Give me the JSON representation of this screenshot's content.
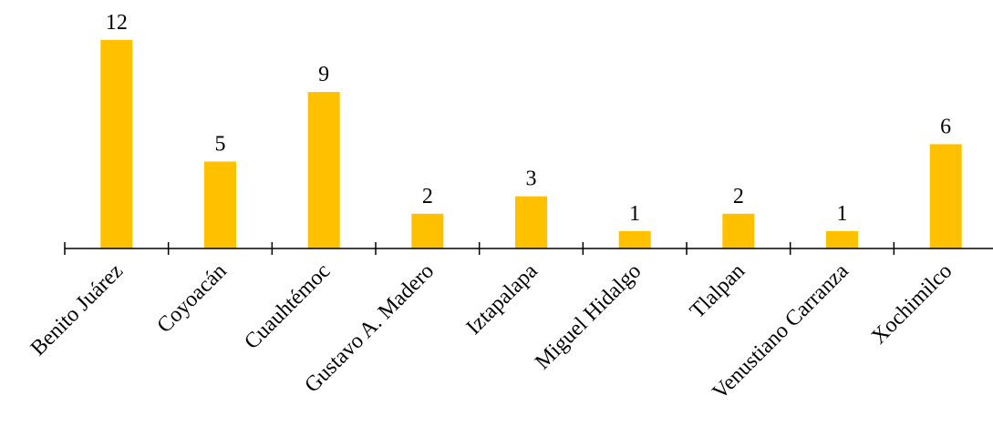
{
  "chart_data": {
    "type": "bar",
    "categories": [
      "Benito Juárez",
      "Coyoacán",
      "Cuauhtémoc",
      "Gustavo A. Madero",
      "Iztapalapa",
      "Miguel Hidalgo",
      "Tlalpan",
      "Venustiano Carranza",
      "Xochimilco"
    ],
    "series": [
      {
        "values": [
          12,
          5,
          9,
          2,
          3,
          1,
          2,
          1,
          6
        ]
      }
    ],
    "data_labels": [
      "12",
      "5",
      "9",
      "2",
      "3",
      "1",
      "2",
      "1",
      "6"
    ],
    "title": "",
    "xlabel": "",
    "ylabel": "",
    "ylim": [
      0,
      12
    ],
    "grid": false,
    "legend": "none",
    "bar_color": "#FFC000",
    "axis_color": "#000000"
  }
}
